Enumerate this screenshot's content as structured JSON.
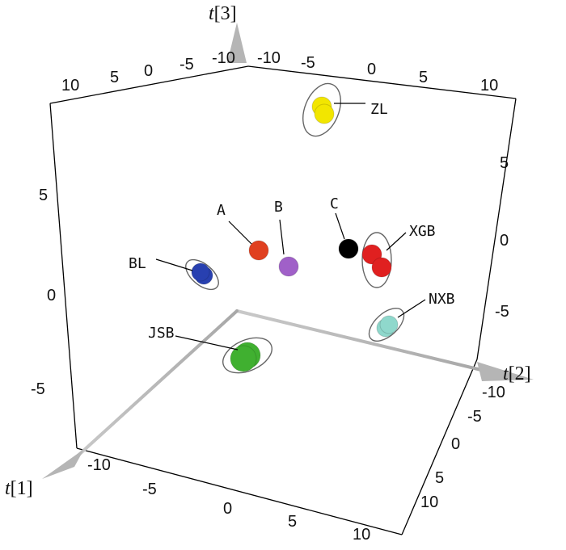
{
  "chart_data": {
    "type": "scatter",
    "subtype": "3d-score-plot",
    "title": "",
    "axes": {
      "t1": {
        "name": "t",
        "index": "[1]",
        "ticks": [
          "-10",
          "-5",
          "0",
          "5",
          "10"
        ],
        "range": [
          -12,
          12
        ]
      },
      "t2": {
        "name": "t",
        "index": "[2]",
        "ticks": [
          "-10",
          "-5",
          "0",
          "5",
          "10"
        ],
        "range": [
          -12,
          12
        ]
      },
      "t3": {
        "name": "t",
        "index": "[3]",
        "ticks": [
          "-5",
          "0",
          "5"
        ],
        "range": [
          -8,
          8
        ]
      }
    },
    "box_tick_labels": {
      "top_left_edge": [
        "10",
        "5",
        "0",
        "-5",
        "-10"
      ],
      "top_right_edge": [
        "-10",
        "-5",
        "0",
        "5",
        "10"
      ],
      "left_vertical": [
        "5",
        "0",
        "-5"
      ],
      "right_vertical": [
        "5",
        "0",
        "-5"
      ]
    },
    "groups": [
      {
        "label": "ZL",
        "color": "#f2e600",
        "ellipse": true,
        "points": [
          [
            -4.0,
            -6.0,
            6.6
          ],
          [
            -4.3,
            -5.8,
            6.9
          ]
        ]
      },
      {
        "label": "XGB",
        "color": "#e02020",
        "ellipse": true,
        "points": [
          [
            0.0,
            5.2,
            0.6
          ],
          [
            0.6,
            5.6,
            -0.2
          ]
        ]
      },
      {
        "label": "BL",
        "color": "#2840b0",
        "ellipse": true,
        "points": [
          [
            4.5,
            -9.2,
            -0.7
          ],
          [
            4.2,
            -9.0,
            -0.5
          ]
        ]
      },
      {
        "label": "NXB",
        "color": "#8fd8cc",
        "ellipse": true,
        "points": [
          [
            0.0,
            10.0,
            -3.5
          ],
          [
            0.2,
            10.2,
            -3.7
          ]
        ]
      },
      {
        "label": "JSB",
        "color": "#40b030",
        "ellipse": true,
        "points": [
          [
            8.0,
            0.2,
            -2.0
          ],
          [
            8.2,
            0.0,
            -2.2
          ]
        ]
      },
      {
        "label": "A",
        "color": "#e04020",
        "ellipse": false,
        "points": [
          [
            0.5,
            -0.5,
            2.0
          ]
        ]
      },
      {
        "label": "B",
        "color": "#a060c8",
        "ellipse": false,
        "points": [
          [
            2.2,
            1.0,
            1.7
          ]
        ]
      },
      {
        "label": "C",
        "color": "#000000",
        "ellipse": false,
        "points": [
          [
            -1.0,
            4.0,
            0.8
          ]
        ]
      }
    ]
  }
}
